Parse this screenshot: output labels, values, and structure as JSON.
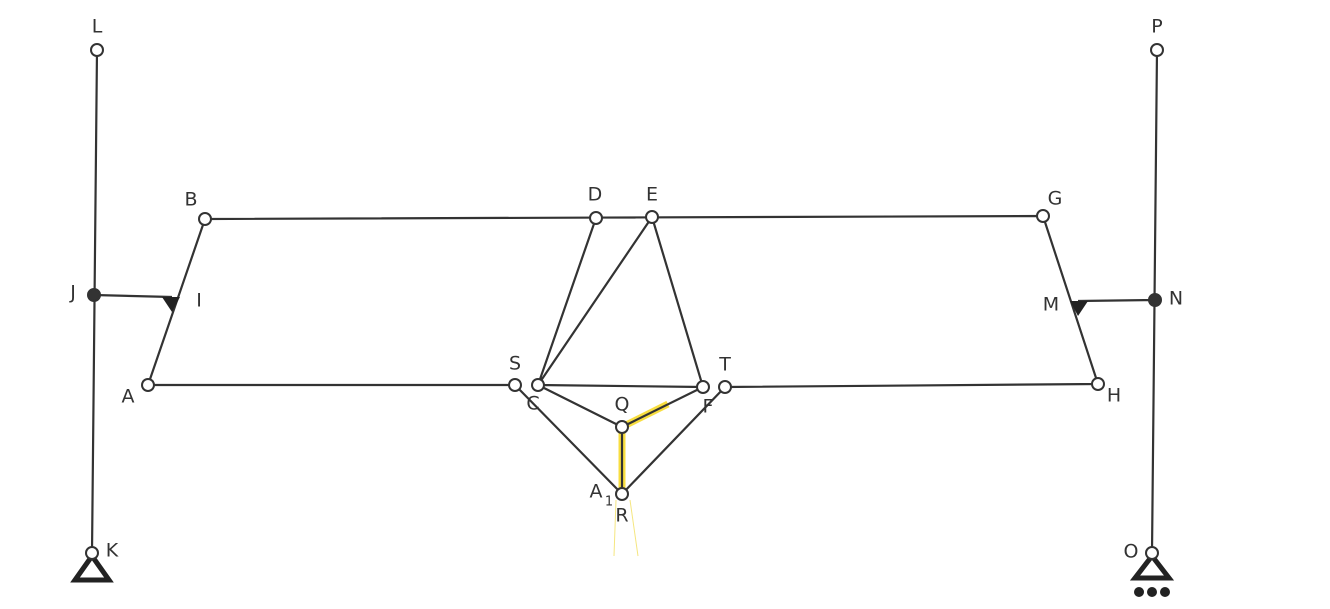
{
  "nodes": [
    {
      "label": "L"
    },
    {
      "label": "P"
    },
    {
      "label": "B"
    },
    {
      "label": "D"
    },
    {
      "label": "E"
    },
    {
      "label": "G"
    },
    {
      "label": "J"
    },
    {
      "label": "I"
    },
    {
      "label": "M"
    },
    {
      "label": "N"
    },
    {
      "label": "A"
    },
    {
      "label": "S"
    },
    {
      "label": "C"
    },
    {
      "label": "F"
    },
    {
      "label": "T"
    },
    {
      "label": "H"
    },
    {
      "label": "Q"
    },
    {
      "label": "R"
    },
    {
      "label": "A",
      "subscript": "1"
    },
    {
      "label": "K"
    },
    {
      "label": "O"
    }
  ]
}
